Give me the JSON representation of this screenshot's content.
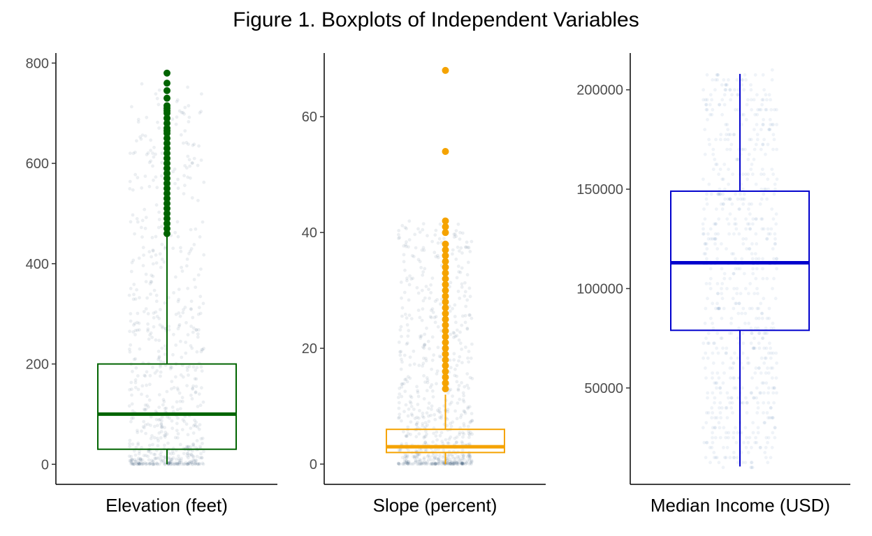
{
  "title": "Figure 1. Boxplots of Independent Variables",
  "chart_data": [
    {
      "type": "boxplot",
      "xlabel": "Elevation (feet)",
      "ylim": [
        -40,
        820
      ],
      "yticks": [
        0,
        200,
        400,
        600,
        800
      ],
      "tick_labels": [
        "0",
        "200",
        "400",
        "600",
        "800"
      ],
      "color": "#006400",
      "jitter_color": "#2f4b6e",
      "jitter_max": 760,
      "stats": {
        "min": 0,
        "q1": 30,
        "median": 100,
        "q3": 200,
        "whisker_high": 460,
        "max": 780
      },
      "outliers": [
        460,
        470,
        480,
        490,
        500,
        510,
        520,
        530,
        540,
        550,
        560,
        570,
        580,
        590,
        600,
        610,
        620,
        630,
        640,
        650,
        660,
        665,
        670,
        680,
        690,
        700,
        705,
        710,
        715,
        730,
        745,
        760,
        780
      ]
    },
    {
      "type": "boxplot",
      "xlabel": "Slope (percent)",
      "ylim": [
        -3.5,
        71
      ],
      "yticks": [
        0,
        20,
        40,
        60
      ],
      "tick_labels": [
        "0",
        "20",
        "40",
        "60"
      ],
      "color": "#f5a300",
      "jitter_color": "#2f4b6e",
      "jitter_max": 42,
      "stats": {
        "min": 0,
        "q1": 2,
        "median": 3,
        "q3": 6,
        "whisker_high": 12,
        "max": 68
      },
      "outliers": [
        13,
        14,
        15,
        16,
        17,
        18,
        19,
        20,
        21,
        22,
        23,
        24,
        25,
        26,
        27,
        28,
        29,
        30,
        31,
        32,
        33,
        34,
        35,
        36,
        37,
        38,
        40,
        41,
        42,
        54,
        68
      ]
    },
    {
      "type": "boxplot",
      "xlabel": "Median Income (USD)",
      "ylim": [
        1500,
        218500
      ],
      "yticks": [
        50000,
        100000,
        150000,
        200000
      ],
      "tick_labels": [
        "50000",
        "100000",
        "150000",
        "200000"
      ],
      "color": "#0000cd",
      "jitter_color": "#4a7fb5",
      "jitter_max": 209000,
      "stats": {
        "min": 10500,
        "q1": 79000,
        "median": 113000,
        "q3": 149000,
        "whisker_high": 208000,
        "max": 208000
      },
      "outliers": []
    }
  ]
}
